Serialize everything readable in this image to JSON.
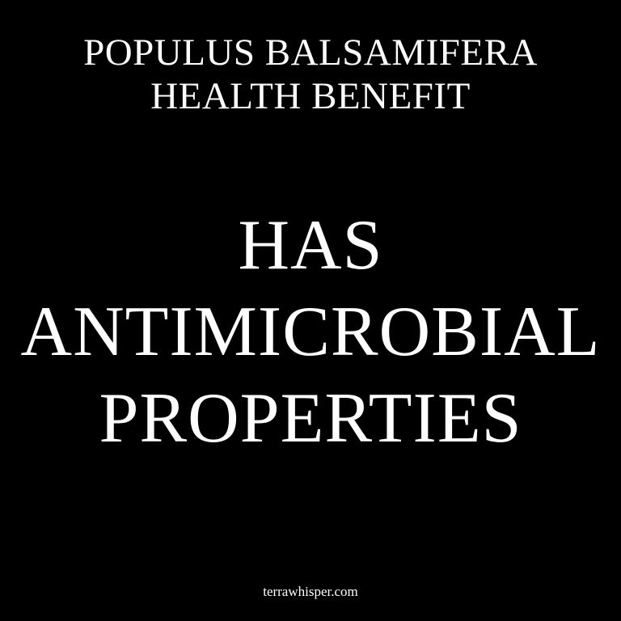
{
  "header": {
    "lines": [
      "POPULUS BALSAMIFERA",
      "HEALTH BENEFIT"
    ]
  },
  "headline": {
    "lines": [
      "HAS",
      "ANTIMICROBIAL",
      "PROPERTIES"
    ]
  },
  "footer": {
    "site": "terrawhisper.com"
  },
  "colors": {
    "background": "#000000",
    "text": "#ffffff"
  }
}
